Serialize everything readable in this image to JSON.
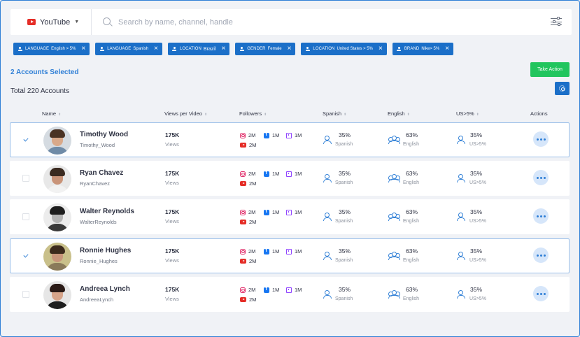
{
  "search": {
    "platform": "YouTube",
    "placeholder": "Search by name, channel, handle",
    "value": ""
  },
  "filters": [
    {
      "key": "LANGUAGE",
      "value": "English > 5%",
      "icon": "group-icon"
    },
    {
      "key": "LANGUAGE",
      "value": "Spanish",
      "icon": "group-icon"
    },
    {
      "key": "LOCATION",
      "value": "Brazil",
      "icon": "person-icon"
    },
    {
      "key": "GENDER",
      "value": "Female",
      "icon": "person-icon"
    },
    {
      "key": "LOCATION",
      "value": "United States > 5%",
      "icon": "group-icon"
    },
    {
      "key": "BRAND",
      "value": "Nike> 5%",
      "icon": "group-icon"
    }
  ],
  "selection": {
    "selected_text": "2 Accounts Selected",
    "take_action_label": "Take Action",
    "total_text": "Total 220 Accounts"
  },
  "columns": {
    "name": "Name",
    "views": "Views per Video",
    "followers": "Followers",
    "spanish": "Spanish",
    "english": "English",
    "us": "US>5%",
    "actions": "Actions"
  },
  "rows": [
    {
      "name": "Timothy Wood",
      "handle": "Timothy_Wood",
      "selected": true,
      "views": "175K",
      "views_label": "Views",
      "instagram": "2M",
      "facebook": "1M",
      "twitch": "1M",
      "youtube": "2M",
      "spanish": "35%",
      "spanish_label": "Spanish",
      "english": "63%",
      "english_label": "English",
      "us": "35%",
      "us_label": "US>5%",
      "avatar": {
        "bg": "#d5dbe1",
        "hair": "#4a3324",
        "skin": "#d9a98a",
        "shirt": "#6f8ba7"
      }
    },
    {
      "name": "Ryan Chavez",
      "handle": "RyanChavez",
      "selected": false,
      "views": "175K",
      "views_label": "Views",
      "instagram": "2M",
      "facebook": "1M",
      "twitch": "1M",
      "youtube": "2M",
      "spanish": "35%",
      "spanish_label": "Spanish",
      "english": "63%",
      "english_label": "English",
      "us": "35%",
      "us_label": "US>5%",
      "avatar": {
        "bg": "#e8e8e8",
        "hair": "#3a2a20",
        "skin": "#c99479",
        "shirt": "#f2f2f2"
      }
    },
    {
      "name": "Walter Reynolds",
      "handle": "WalterReynolds",
      "selected": false,
      "views": "175K",
      "views_label": "Views",
      "instagram": "2M",
      "facebook": "1M",
      "twitch": "1M",
      "youtube": "2M",
      "spanish": "35%",
      "spanish_label": "Spanish",
      "english": "63%",
      "english_label": "English",
      "us": "35%",
      "us_label": "US>5%",
      "avatar": {
        "bg": "#ececec",
        "hair": "#1e1e1e",
        "skin": "#b5b5b5",
        "shirt": "#3a3a3a"
      }
    },
    {
      "name": "Ronnie Hughes",
      "handle": "Ronnie_Hughes",
      "selected": true,
      "views": "175K",
      "views_label": "Views",
      "instagram": "2M",
      "facebook": "1M",
      "twitch": "1M",
      "youtube": "2M",
      "spanish": "35%",
      "spanish_label": "Spanish",
      "english": "63%",
      "english_label": "English",
      "us": "35%",
      "us_label": "US>5%",
      "avatar": {
        "bg": "#c9c08a",
        "hair": "#3c2a1c",
        "skin": "#c8957a",
        "shirt": "#8a7a5a"
      }
    },
    {
      "name": "Andreea Lynch",
      "handle": "AndreeaLynch",
      "selected": false,
      "views": "175K",
      "views_label": "Views",
      "instagram": "2M",
      "facebook": "1M",
      "twitch": "1M",
      "youtube": "2M",
      "spanish": "35%",
      "spanish_label": "Spanish",
      "english": "63%",
      "english_label": "English",
      "us": "35%",
      "us_label": "US>5%",
      "avatar": {
        "bg": "#e6e6e6",
        "hair": "#2a1a16",
        "skin": "#d6a48a",
        "shirt": "#1f1f1f"
      }
    }
  ],
  "colors": {
    "primary": "#1b6fc8",
    "accent_text": "#2f7fd6",
    "action_green": "#22c55e"
  }
}
